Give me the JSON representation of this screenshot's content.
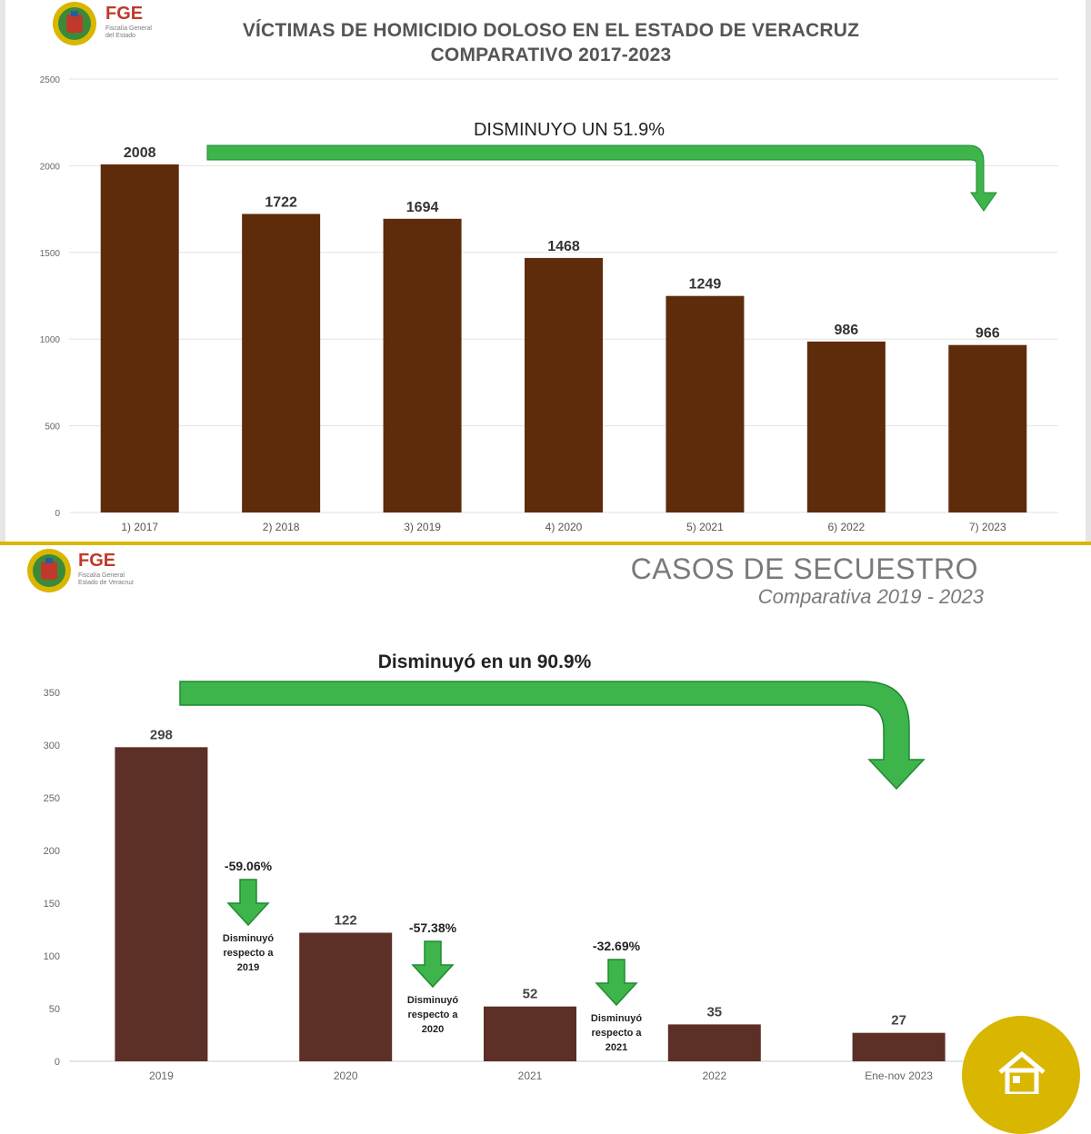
{
  "header1": {
    "logo_text": "FGE",
    "logo_sub_1": "Fiscalía General",
    "logo_sub_2": "del Estado",
    "title_line1": "VÍCTIMAS DE HOMICIDIO DOLOSO EN EL ESTADO DE VERACRUZ",
    "title_line2": "COMPARATIVO 2017-2023",
    "annotation": "DISMINUYO UN 51.9%"
  },
  "header2": {
    "logo_text": "FGE",
    "logo_sub_1": "Fiscalía General",
    "logo_sub_2": "Estado de Veracruz",
    "title": "CASOS DE SECUESTRO",
    "subtitle": "Comparativa 2019 - 2023",
    "annotation": "Disminuyó en un 90.9%"
  },
  "colors": {
    "bar1": "#5e2c0a",
    "bar2": "#5c2f27",
    "arrow": "#3db54a",
    "arrow_dark": "#1f8a32",
    "grid": "#e3e3e3",
    "home_button": "#d9b600"
  },
  "chart_data": [
    {
      "type": "bar",
      "title": "VÍCTIMAS DE HOMICIDIO DOLOSO EN EL ESTADO DE VERACRUZ",
      "subtitle": "COMPARATIVO 2017-2023",
      "categories": [
        "1) 2017",
        "2) 2018",
        "3) 2019",
        "4) 2020",
        "5) 2021",
        "6) 2022",
        "7) 2023"
      ],
      "values": [
        2008,
        1722,
        1694,
        1468,
        1249,
        986,
        966
      ],
      "data_labels": [
        "2008",
        "1722",
        "1694",
        "1468",
        "1249",
        "986",
        "966"
      ],
      "yticks": [
        "0",
        "500",
        "1000",
        "1500",
        "2000",
        "2500"
      ],
      "ylim": [
        0,
        2500
      ],
      "grid": true,
      "xlabel": "",
      "ylabel": "",
      "annotations": [
        "DISMINUYO UN 51.9%"
      ]
    },
    {
      "type": "bar",
      "title": "CASOS DE SECUESTRO",
      "subtitle": "Comparativa 2019 - 2023",
      "categories": [
        "2019",
        "2020",
        "2021",
        "2022",
        "Ene-nov 2023"
      ],
      "values": [
        298,
        122,
        52,
        35,
        27
      ],
      "data_labels": [
        "298",
        "122",
        "52",
        "35",
        "27"
      ],
      "yticks": [
        "0",
        "50",
        "100",
        "150",
        "200",
        "250",
        "300",
        "350"
      ],
      "ylim": [
        0,
        350
      ],
      "grid": false,
      "xlabel": "",
      "ylabel": "",
      "annotations": [
        "Disminuyó en un 90.9%"
      ],
      "changes": [
        {
          "pct": "-59.06%",
          "line1": "Disminuyó",
          "line2": "respecto a",
          "line3": "2019"
        },
        {
          "pct": "-57.38%",
          "line1": "Disminuyó",
          "line2": "respecto a",
          "line3": "2020"
        },
        {
          "pct": "-32.69%",
          "line1": "Disminuyó",
          "line2": "respecto a",
          "line3": "2021"
        }
      ]
    }
  ]
}
